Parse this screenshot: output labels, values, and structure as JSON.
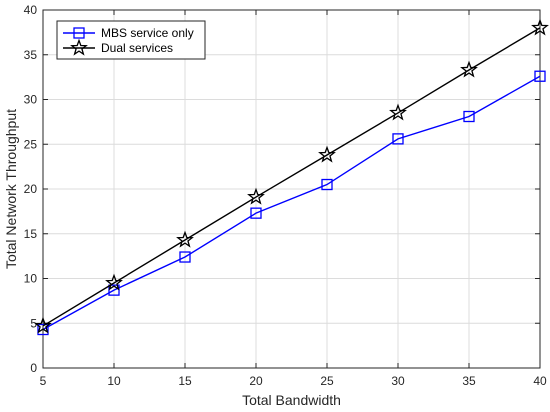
{
  "chart_data": {
    "type": "line",
    "title": "",
    "xlabel": "Total Bandwidth",
    "ylabel": "Total Network Throughput",
    "xlim": [
      5,
      40
    ],
    "ylim": [
      0,
      40
    ],
    "xticks": [
      5,
      10,
      15,
      20,
      25,
      30,
      35,
      40
    ],
    "yticks": [
      0,
      5,
      10,
      15,
      20,
      25,
      30,
      35,
      40
    ],
    "grid": true,
    "legend_position": "top-left",
    "x": [
      5,
      10,
      15,
      20,
      25,
      30,
      35,
      40
    ],
    "series": [
      {
        "name": "MBS service only",
        "values": [
          4.3,
          8.7,
          12.4,
          17.3,
          20.5,
          25.6,
          28.1,
          32.6
        ],
        "color": "#0000ff",
        "marker": "square"
      },
      {
        "name": "Dual services",
        "values": [
          4.7,
          9.5,
          14.3,
          19.1,
          23.8,
          28.5,
          33.3,
          38.0
        ],
        "color": "#000000",
        "marker": "pentagram"
      }
    ]
  }
}
